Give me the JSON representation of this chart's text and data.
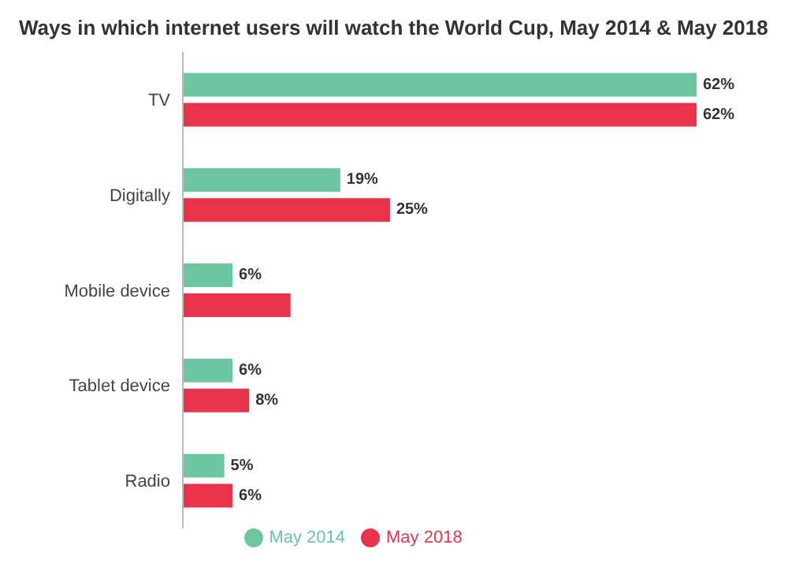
{
  "chart_data": {
    "type": "bar",
    "orientation": "horizontal",
    "title": "Ways in which internet users will watch the World Cup, May 2014 & May 2018",
    "categories": [
      "TV",
      "Digitally",
      "Mobile device",
      "Tablet device",
      "Radio"
    ],
    "series": [
      {
        "name": "May 2014",
        "color": "#6cc6a2",
        "values": [
          62,
          19,
          6,
          6,
          5
        ],
        "value_labels": [
          "62%",
          "19%",
          "6%",
          "6%",
          "5%"
        ]
      },
      {
        "name": "May 2018",
        "color": "#e8334a",
        "values": [
          62,
          25,
          13,
          8,
          6
        ],
        "value_labels": [
          "62%",
          "25%",
          null,
          "8%",
          "6%"
        ]
      }
    ],
    "legend": "bottom",
    "grid": false
  }
}
